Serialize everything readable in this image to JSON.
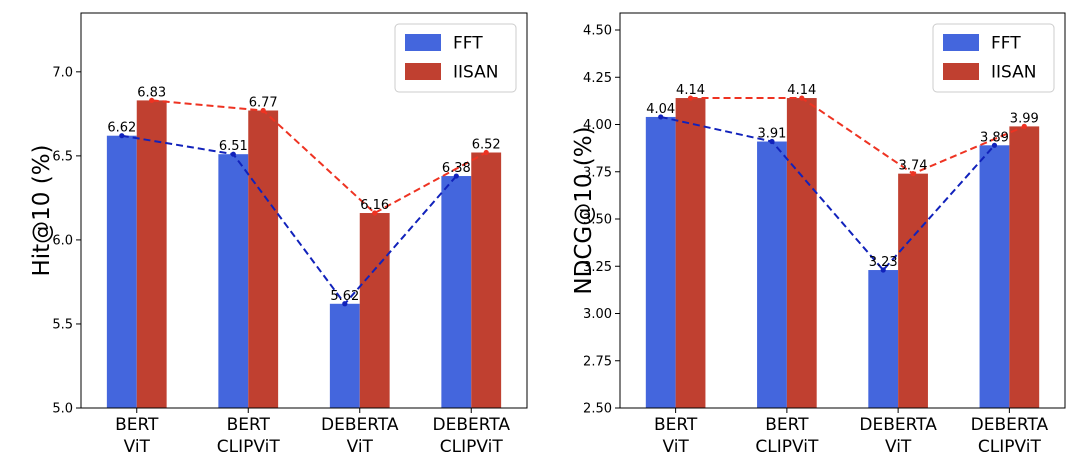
{
  "chart_data": [
    {
      "type": "bar",
      "title": "",
      "xlabel": "",
      "ylabel": "Hit@10 (%)",
      "ylim": [
        5.0,
        7.35
      ],
      "yticks": [
        "5.0",
        "5.5",
        "6.0",
        "6.5",
        "7.0"
      ],
      "categories": [
        [
          "BERT",
          "ViT"
        ],
        [
          "BERT",
          "CLIPViT"
        ],
        [
          "DEBERTA",
          "ViT"
        ],
        [
          "DEBERTA",
          "CLIPViT"
        ]
      ],
      "series": [
        {
          "name": "FFT",
          "values": [
            6.62,
            6.51,
            5.62,
            6.38
          ],
          "labels": [
            "6.62",
            "6.51",
            "5.62",
            "6.38"
          ],
          "color": "#4466dd",
          "line_color": "#1122bb"
        },
        {
          "name": "IISAN",
          "values": [
            6.83,
            6.77,
            6.16,
            6.52
          ],
          "labels": [
            "6.83",
            "6.77",
            "6.16",
            "6.52"
          ],
          "color": "#c04030",
          "line_color": "#ee3322"
        }
      ],
      "legend": "top-right",
      "grid": false
    },
    {
      "type": "bar",
      "title": "",
      "xlabel": "",
      "ylabel": "NDCG@10 (%)",
      "ylim": [
        2.5,
        4.59
      ],
      "yticks": [
        "2.50",
        "2.75",
        "3.00",
        "3.25",
        "3.50",
        "3.75",
        "4.00",
        "4.25",
        "4.50"
      ],
      "categories": [
        [
          "BERT",
          "ViT"
        ],
        [
          "BERT",
          "CLIPViT"
        ],
        [
          "DEBERTA",
          "ViT"
        ],
        [
          "DEBERTA",
          "CLIPViT"
        ]
      ],
      "series": [
        {
          "name": "FFT",
          "values": [
            4.04,
            3.91,
            3.23,
            3.89
          ],
          "labels": [
            "4.04",
            "3.91",
            "3.23",
            "3.89"
          ],
          "color": "#4466dd",
          "line_color": "#1122bb"
        },
        {
          "name": "IISAN",
          "values": [
            4.14,
            4.14,
            3.74,
            3.99
          ],
          "labels": [
            "4.14",
            "4.14",
            "3.74",
            "3.99"
          ],
          "color": "#c04030",
          "line_color": "#ee3322"
        }
      ],
      "legend": "top-right",
      "grid": false
    }
  ]
}
